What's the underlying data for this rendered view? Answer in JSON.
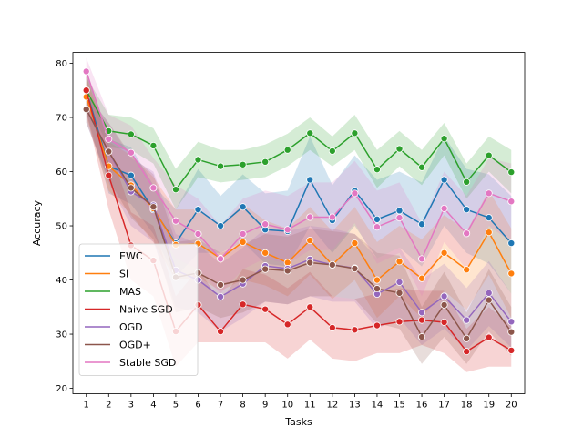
{
  "chart_data": {
    "type": "line",
    "title": "",
    "xlabel": "Tasks",
    "ylabel": "Accuracy",
    "x": [
      1,
      2,
      3,
      4,
      5,
      6,
      7,
      8,
      9,
      10,
      11,
      12,
      13,
      14,
      15,
      16,
      17,
      18,
      19,
      20
    ],
    "xlim": [
      0.4,
      20.6
    ],
    "ylim": [
      19,
      82
    ],
    "yticks": [
      20,
      30,
      40,
      50,
      60,
      70,
      80
    ],
    "legend_position": "lower-left",
    "series": [
      {
        "name": "EWC",
        "color": "#1f77b4",
        "values": [
          75.0,
          61.0,
          59.3,
          53.0,
          46.8,
          53.0,
          50.0,
          53.5,
          49.3,
          49.0,
          58.5,
          51.0,
          56.5,
          51.2,
          52.8,
          50.3,
          58.5,
          53.0,
          51.5,
          46.8
        ],
        "lower": [
          71.0,
          56.0,
          54.0,
          48.5,
          40.5,
          45.0,
          45.0,
          47.0,
          43.0,
          42.5,
          50.0,
          45.0,
          50.0,
          44.0,
          46.0,
          42.5,
          50.0,
          45.0,
          43.0,
          37.5
        ],
        "upper": [
          79.0,
          66.0,
          64.5,
          57.5,
          53.0,
          60.5,
          55.5,
          59.5,
          56.0,
          56.5,
          66.5,
          57.5,
          63.0,
          58.5,
          60.0,
          58.0,
          66.5,
          60.5,
          59.5,
          55.5
        ]
      },
      {
        "name": "SI",
        "color": "#ff7f0e",
        "values": [
          73.8,
          61.0,
          57.5,
          53.2,
          46.5,
          46.7,
          44.0,
          47.0,
          45.0,
          43.2,
          47.3,
          42.8,
          46.8,
          40.0,
          43.4,
          40.3,
          45.0,
          41.9,
          48.8,
          41.2
        ],
        "lower": [
          70.0,
          56.5,
          52.0,
          47.0,
          40.0,
          40.5,
          38.0,
          40.0,
          39.0,
          37.0,
          41.0,
          36.5,
          40.0,
          33.0,
          37.0,
          33.0,
          38.0,
          34.5,
          41.0,
          33.0
        ],
        "upper": [
          77.5,
          65.5,
          63.0,
          59.0,
          53.0,
          53.0,
          50.0,
          54.0,
          51.0,
          49.5,
          53.5,
          49.0,
          53.5,
          47.0,
          50.0,
          47.5,
          52.0,
          49.0,
          56.5,
          49.5
        ]
      },
      {
        "name": "MAS",
        "color": "#2ca02c",
        "values": [
          75.0,
          67.5,
          66.9,
          64.8,
          56.7,
          62.2,
          61.0,
          61.3,
          61.8,
          64.0,
          67.1,
          63.8,
          67.1,
          60.4,
          64.2,
          60.8,
          66.1,
          58.1,
          63.0,
          59.9
        ],
        "lower": [
          73.0,
          64.5,
          64.0,
          61.5,
          53.0,
          59.0,
          58.0,
          58.5,
          59.0,
          61.0,
          64.0,
          61.0,
          64.0,
          57.0,
          61.0,
          57.5,
          63.0,
          55.0,
          60.0,
          56.0
        ],
        "upper": [
          77.5,
          70.5,
          70.0,
          68.0,
          60.5,
          65.5,
          64.0,
          64.0,
          65.0,
          67.0,
          70.0,
          66.5,
          70.5,
          64.0,
          67.5,
          64.0,
          69.0,
          61.5,
          66.5,
          64.0
        ]
      },
      {
        "name": "Naive SGD",
        "color": "#d62728",
        "values": [
          75.0,
          59.3,
          46.4,
          43.6,
          30.5,
          35.4,
          30.5,
          35.5,
          34.6,
          31.8,
          35.0,
          31.2,
          30.8,
          31.6,
          32.3,
          32.6,
          32.2,
          26.8,
          29.4,
          27.0
        ],
        "lower": [
          71.0,
          53.0,
          40.0,
          37.0,
          24.0,
          28.5,
          28.5,
          28.5,
          28.5,
          25.5,
          29.0,
          25.5,
          25.0,
          26.5,
          26.5,
          28.0,
          26.5,
          23.0,
          24.0,
          24.0
        ],
        "upper": [
          79.0,
          65.0,
          52.5,
          50.0,
          37.0,
          42.0,
          36.0,
          42.0,
          41.0,
          38.5,
          41.5,
          37.0,
          36.5,
          37.5,
          38.5,
          38.0,
          38.0,
          31.0,
          35.0,
          31.5
        ]
      },
      {
        "name": "OGD",
        "color": "#9467bd",
        "values": [
          71.5,
          63.7,
          56.3,
          53.8,
          41.8,
          40.0,
          36.9,
          39.3,
          42.6,
          42.1,
          43.8,
          42.8,
          42.2,
          37.4,
          39.6,
          34.0,
          37.0,
          32.6,
          37.6,
          32.3
        ],
        "lower": [
          69.0,
          58.0,
          50.0,
          47.0,
          35.0,
          34.0,
          30.5,
          33.0,
          36.0,
          35.5,
          37.0,
          36.0,
          36.0,
          31.0,
          33.0,
          28.0,
          31.0,
          27.0,
          31.5,
          27.5
        ],
        "upper": [
          74.5,
          69.0,
          62.5,
          60.0,
          48.5,
          46.5,
          43.0,
          46.0,
          49.5,
          49.0,
          50.0,
          49.5,
          48.5,
          44.0,
          46.0,
          40.0,
          43.0,
          38.5,
          43.5,
          37.5
        ]
      },
      {
        "name": "OGD+",
        "color": "#8c564b",
        "values": [
          71.5,
          63.7,
          57.0,
          53.5,
          40.5,
          41.3,
          39.1,
          40.0,
          42.0,
          41.7,
          43.2,
          42.8,
          42.1,
          38.4,
          37.6,
          29.5,
          35.4,
          29.2,
          36.3,
          30.4
        ],
        "lower": [
          69.0,
          58.5,
          51.5,
          47.5,
          34.0,
          35.0,
          33.0,
          34.0,
          36.0,
          35.5,
          37.0,
          37.0,
          36.5,
          32.0,
          31.0,
          24.5,
          29.5,
          24.5,
          30.5,
          26.0
        ],
        "upper": [
          74.5,
          69.0,
          63.0,
          59.5,
          47.0,
          47.5,
          45.0,
          46.5,
          48.5,
          48.0,
          49.5,
          49.0,
          48.5,
          45.0,
          44.5,
          35.0,
          41.5,
          34.0,
          42.0,
          35.0
        ]
      },
      {
        "name": "Stable SGD",
        "color": "#e377c2",
        "values": [
          78.5,
          66.0,
          63.5,
          57.0,
          50.9,
          48.5,
          43.9,
          48.5,
          50.3,
          49.3,
          51.6,
          51.6,
          56.0,
          49.8,
          51.5,
          43.9,
          53.2,
          48.6,
          56.0,
          54.5
        ],
        "lower": [
          76.0,
          61.5,
          58.5,
          51.5,
          44.0,
          42.0,
          37.5,
          42.0,
          44.0,
          43.0,
          45.5,
          45.5,
          50.5,
          43.0,
          45.0,
          37.0,
          47.0,
          42.0,
          50.0,
          47.0
        ],
        "upper": [
          81.0,
          70.5,
          68.5,
          62.5,
          57.5,
          55.0,
          50.0,
          55.0,
          56.5,
          55.5,
          58.0,
          58.0,
          62.0,
          56.5,
          58.0,
          50.5,
          60.0,
          55.5,
          62.5,
          61.5
        ]
      }
    ]
  }
}
